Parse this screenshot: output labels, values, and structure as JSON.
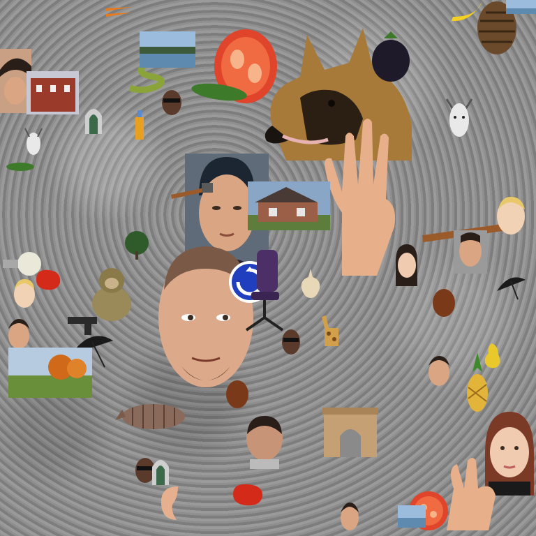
{
  "scene": {
    "description_type": "photo collage",
    "background_color": "#888888",
    "objects": [
      {
        "name": "german-shepherd-dog"
      },
      {
        "name": "man-face-center-large"
      },
      {
        "name": "man-face-upper-center"
      },
      {
        "name": "woman-face-bottom-right"
      },
      {
        "name": "tomato-slice"
      },
      {
        "name": "house-photo"
      },
      {
        "name": "pine-cone"
      },
      {
        "name": "giraffe"
      },
      {
        "name": "armadillo"
      },
      {
        "name": "monkey"
      },
      {
        "name": "roundabout-sign"
      },
      {
        "name": "umbrella"
      },
      {
        "name": "pineapple"
      },
      {
        "name": "zucchini"
      },
      {
        "name": "red-pepper"
      },
      {
        "name": "light-bulb"
      },
      {
        "name": "hammer"
      },
      {
        "name": "arch-monument"
      },
      {
        "name": "snake"
      },
      {
        "name": "goat"
      }
    ]
  }
}
